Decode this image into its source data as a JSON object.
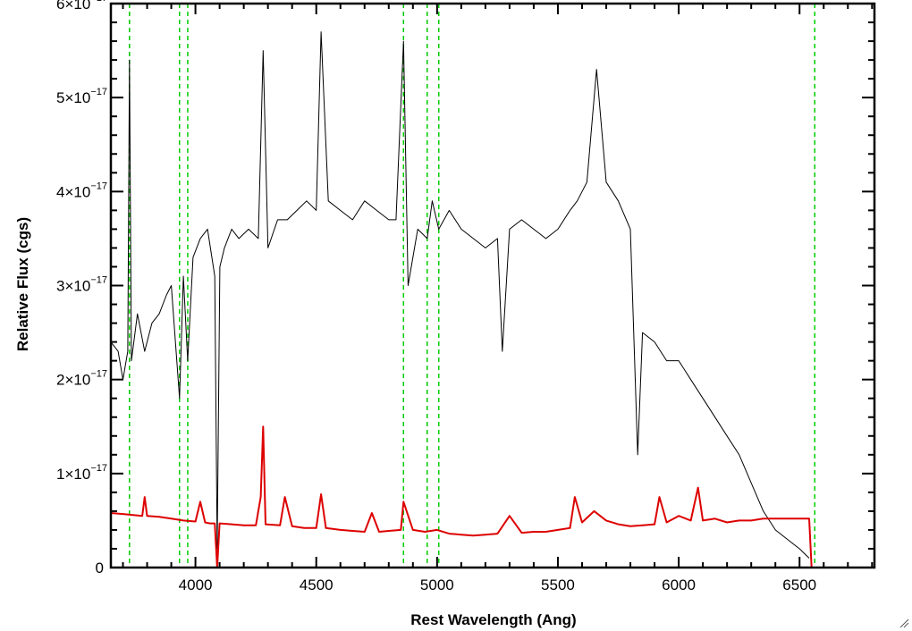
{
  "chart_data": {
    "type": "line",
    "xlabel": "Rest Wavelength (Ang)",
    "ylabel": "Relative Flux (cgs)",
    "xlim": [
      3650,
      6810
    ],
    "ylim": [
      0,
      6e-17
    ],
    "x_ticks": [
      {
        "value": 4000,
        "label": "4000"
      },
      {
        "value": 4500,
        "label": "4500"
      },
      {
        "value": 5000,
        "label": "5000"
      },
      {
        "value": 5500,
        "label": "5500"
      },
      {
        "value": 6000,
        "label": "6000"
      },
      {
        "value": 6500,
        "label": "6500"
      }
    ],
    "y_ticks": [
      {
        "value": 0,
        "mantissa": "0",
        "exponent": ""
      },
      {
        "value": 1e-17,
        "mantissa": "1×10",
        "exponent": "−17"
      },
      {
        "value": 2e-17,
        "mantissa": "2×10",
        "exponent": "−17"
      },
      {
        "value": 3e-17,
        "mantissa": "3×10",
        "exponent": "−17"
      },
      {
        "value": 4e-17,
        "mantissa": "4×10",
        "exponent": "−17"
      },
      {
        "value": 5e-17,
        "mantissa": "5×10",
        "exponent": "−17"
      },
      {
        "value": 6e-17,
        "mantissa": "6×10",
        "exponent": "−17"
      }
    ],
    "vertical_lines": [
      3727,
      3934,
      3968,
      4861,
      4959,
      5007,
      6563
    ],
    "series": [
      {
        "color": "#000000",
        "x": [
          3650,
          3680,
          3700,
          3720,
          3727,
          3735,
          3760,
          3790,
          3820,
          3850,
          3880,
          3900,
          3934,
          3950,
          3968,
          3990,
          4020,
          4050,
          4080,
          4090,
          4101,
          4120,
          4150,
          4180,
          4220,
          4260,
          4280,
          4300,
          4340,
          4380,
          4420,
          4460,
          4500,
          4520,
          4550,
          4600,
          4650,
          4700,
          4750,
          4800,
          4830,
          4861,
          4880,
          4920,
          4959,
          4980,
          5007,
          5050,
          5100,
          5150,
          5200,
          5250,
          5270,
          5300,
          5350,
          5400,
          5450,
          5500,
          5550,
          5580,
          5620,
          5660,
          5700,
          5750,
          5800,
          5830,
          5850,
          5900,
          5950,
          6000,
          6050,
          6100,
          6150,
          6200,
          6250,
          6300,
          6350,
          6400,
          6450,
          6500,
          6540
        ],
        "y": [
          2.4e-17,
          2.3e-17,
          2e-17,
          2.3e-17,
          5.4e-17,
          2.2e-17,
          2.7e-17,
          2.3e-17,
          2.6e-17,
          2.7e-17,
          2.9e-17,
          3e-17,
          1.8e-17,
          3.1e-17,
          2.2e-17,
          3.3e-17,
          3.5e-17,
          3.6e-17,
          3.1e-17,
          2e-18,
          3.2e-17,
          3.4e-17,
          3.6e-17,
          3.5e-17,
          3.6e-17,
          3.5e-17,
          5.5e-17,
          3.4e-17,
          3.7e-17,
          3.7e-17,
          3.8e-17,
          3.9e-17,
          3.8e-17,
          5.7e-17,
          3.9e-17,
          3.8e-17,
          3.7e-17,
          3.9e-17,
          3.8e-17,
          3.7e-17,
          3.7e-17,
          5.6e-17,
          3e-17,
          3.6e-17,
          3.5e-17,
          3.9e-17,
          3.6e-17,
          3.8e-17,
          3.6e-17,
          3.5e-17,
          3.4e-17,
          3.5e-17,
          2.3e-17,
          3.6e-17,
          3.7e-17,
          3.6e-17,
          3.5e-17,
          3.6e-17,
          3.8e-17,
          3.9e-17,
          4.1e-17,
          5.3e-17,
          4.1e-17,
          3.9e-17,
          3.6e-17,
          1.2e-17,
          2.5e-17,
          2.4e-17,
          2.2e-17,
          2.2e-17,
          2e-17,
          1.8e-17,
          1.6e-17,
          1.4e-17,
          1.2e-17,
          9e-18,
          6e-18,
          4e-18,
          3e-18,
          2e-18,
          1e-18
        ]
      },
      {
        "color": "#dd0000",
        "x": [
          3650,
          3700,
          3780,
          3790,
          3800,
          3850,
          3900,
          3950,
          4000,
          4020,
          4040,
          4060,
          4080,
          4090,
          4100,
          4150,
          4200,
          4250,
          4270,
          4280,
          4290,
          4350,
          4370,
          4400,
          4450,
          4500,
          4520,
          4540,
          4600,
          4650,
          4700,
          4730,
          4760,
          4800,
          4850,
          4861,
          4900,
          4950,
          5000,
          5050,
          5100,
          5150,
          5200,
          5250,
          5300,
          5350,
          5400,
          5450,
          5500,
          5550,
          5570,
          5600,
          5650,
          5700,
          5750,
          5800,
          5850,
          5900,
          5920,
          5950,
          6000,
          6050,
          6080,
          6100,
          6150,
          6200,
          6250,
          6300,
          6350,
          6400,
          6450,
          6500,
          6540,
          6550,
          6560,
          6810
        ],
        "y": [
          5.8e-18,
          5.7e-18,
          5.5e-18,
          7.5e-18,
          5.5e-18,
          5.4e-18,
          5.2e-18,
          5e-18,
          4.9e-18,
          7e-18,
          4.8e-18,
          4.7e-18,
          4.7e-18,
          0.0,
          4.7e-18,
          4.6e-18,
          4.5e-18,
          4.5e-18,
          7.5e-18,
          1.5e-17,
          4.6e-18,
          4.5e-18,
          7.5e-18,
          4.4e-18,
          4.2e-18,
          4.2e-18,
          7.8e-18,
          4.2e-18,
          4e-18,
          3.9e-18,
          3.8e-18,
          5.8e-18,
          3.8e-18,
          3.9e-18,
          4e-18,
          7e-18,
          4e-18,
          3.8e-18,
          4e-18,
          3.6e-18,
          3.5e-18,
          3.4e-18,
          3.5e-18,
          3.6e-18,
          5.5e-18,
          3.7e-18,
          3.8e-18,
          3.8e-18,
          4e-18,
          4.2e-18,
          7.5e-18,
          4.8e-18,
          6e-18,
          5e-18,
          4.6e-18,
          4.4e-18,
          4.5e-18,
          4.6e-18,
          7.5e-18,
          4.8e-18,
          5.5e-18,
          5e-18,
          8.5e-18,
          5e-18,
          5.2e-18,
          4.8e-18,
          5e-18,
          5e-18,
          5.2e-18,
          5.2e-18,
          5.2e-18,
          5.2e-18,
          5.2e-18,
          0.0,
          0.0,
          0.0
        ]
      }
    ]
  },
  "colors": {
    "emission_line_markers": "#00cc00",
    "flux": "#000000",
    "model": "#dd0000"
  }
}
